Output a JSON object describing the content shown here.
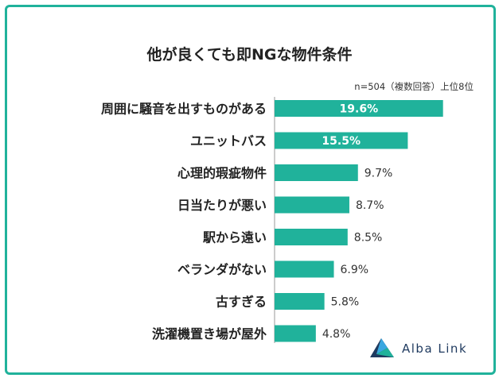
{
  "chart_data": {
    "type": "bar",
    "orientation": "horizontal",
    "title": "他が良くても即NGな物件条件",
    "note": "n=504（複数回答）上位8位",
    "categories": [
      "周囲に騒音を出すものがある",
      "ユニットバス",
      "心理的瑕疵物件",
      "日当たりが悪い",
      "駅から遠い",
      "ベランダがない",
      "古すぎる",
      "洗濯機置き場が屋外"
    ],
    "values": [
      19.6,
      15.5,
      9.7,
      8.7,
      8.5,
      6.9,
      5.8,
      4.8
    ],
    "value_labels": [
      "19.6%",
      "15.5%",
      "9.7%",
      "8.7%",
      "8.5%",
      "6.9%",
      "5.8%",
      "4.8%"
    ],
    "xlim": [
      0,
      25
    ],
    "grid": false,
    "bar_color": "#20b29b"
  },
  "colors": {
    "accent": "#20b29b",
    "brand_text": "#1f3a5f"
  },
  "brand": {
    "name": "Alba Link",
    "icon": "alba-link-logo-icon"
  }
}
